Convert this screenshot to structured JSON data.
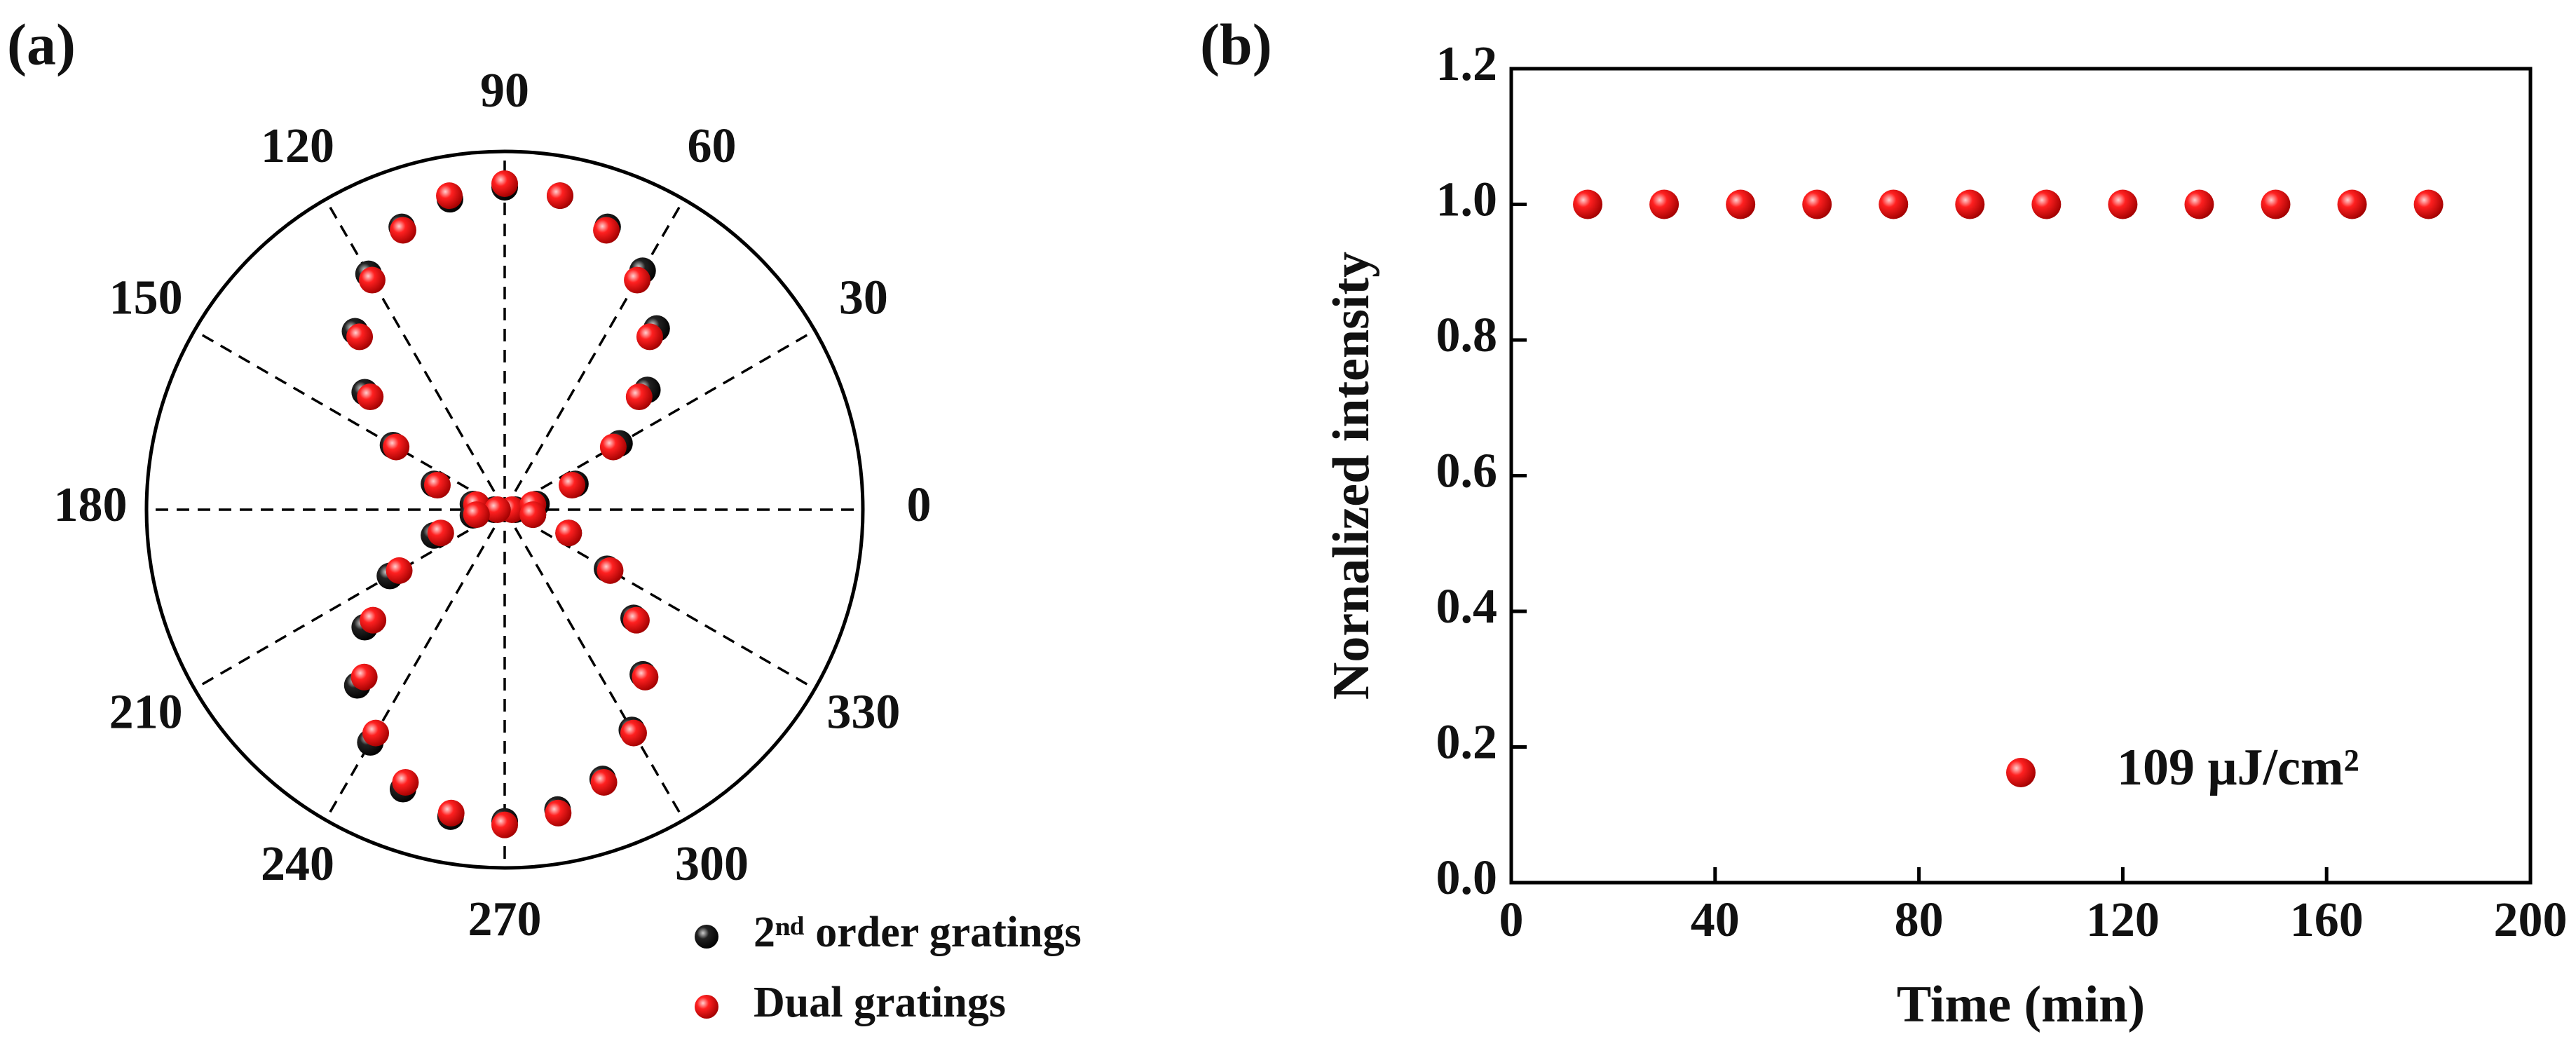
{
  "chart_data": [
    {
      "type": "polar",
      "panel_label": "(a)",
      "theta": [
        0,
        10,
        20,
        30,
        40,
        50,
        60,
        70,
        80,
        90,
        100,
        110,
        120,
        130,
        140,
        150,
        160,
        170,
        180,
        190,
        200,
        210,
        220,
        230,
        240,
        250,
        260,
        270,
        280,
        290,
        300,
        310,
        320,
        330,
        340,
        350
      ],
      "rlim": [
        0,
        1
      ],
      "thetaticks": [
        0,
        30,
        60,
        90,
        120,
        150,
        180,
        210,
        240,
        270,
        300,
        330
      ],
      "grid": true,
      "legend": "bottom-right",
      "series": [
        {
          "name": "2ⁿᵈ order gratings",
          "color": "#1a1a1a",
          "values": [
            0.03,
            0.09,
            0.21,
            0.37,
            0.52,
            0.66,
            0.77,
            0.84,
            0.89,
            0.9,
            0.88,
            0.84,
            0.76,
            0.65,
            0.51,
            0.36,
            0.21,
            0.09,
            0.03,
            0.09,
            0.21,
            0.37,
            0.51,
            0.64,
            0.75,
            0.83,
            0.87,
            0.87,
            0.85,
            0.8,
            0.71,
            0.6,
            0.47,
            0.33,
            0.19,
            0.08
          ]
        },
        {
          "name": "Dual gratings",
          "color": "#ff1a1a",
          "values": [
            0.02,
            0.08,
            0.2,
            0.35,
            0.49,
            0.63,
            0.74,
            0.83,
            0.89,
            0.91,
            0.89,
            0.83,
            0.74,
            0.63,
            0.49,
            0.35,
            0.2,
            0.08,
            0.02,
            0.08,
            0.19,
            0.34,
            0.48,
            0.61,
            0.72,
            0.81,
            0.86,
            0.88,
            0.86,
            0.81,
            0.72,
            0.61,
            0.48,
            0.34,
            0.19,
            0.08
          ]
        }
      ]
    },
    {
      "type": "scatter",
      "panel_label": "(b)",
      "x_label": "Time (min)",
      "y_label": "Nornalized intensity",
      "xlim": [
        0,
        200
      ],
      "xticks": [
        0,
        40,
        80,
        120,
        160,
        200
      ],
      "ylim": [
        0,
        1.2
      ],
      "yticks": [
        {
          "value": 0,
          "label": "0.0"
        },
        {
          "value": 0.2,
          "label": "0.2"
        },
        {
          "value": 0.4,
          "label": "0.4"
        },
        {
          "value": 0.6,
          "label": "0.6"
        },
        {
          "value": 0.8,
          "label": "0.8"
        },
        {
          "value": 1,
          "label": "1.0"
        },
        {
          "value": 1.2,
          "label": "1.2"
        }
      ],
      "legend": "bottom-right",
      "series": [
        {
          "name": "109 μJ/cm²",
          "color": "#ff1a1a",
          "x": [
            15,
            30,
            45,
            60,
            75,
            90,
            105,
            120,
            135,
            150,
            165,
            180
          ],
          "values": [
            1,
            1,
            1,
            1,
            1,
            1,
            1,
            1,
            1,
            1,
            1,
            1
          ]
        }
      ]
    }
  ]
}
